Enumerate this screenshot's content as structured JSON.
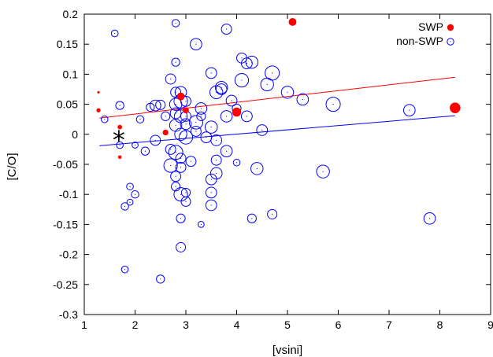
{
  "chart_data": {
    "type": "scatter",
    "xlabel": "[vsini]",
    "ylabel": "[C/O]",
    "xlim": [
      1,
      9
    ],
    "ylim": [
      -0.3,
      0.2
    ],
    "xticks": [
      "1",
      "2",
      "3",
      "4",
      "5",
      "6",
      "7",
      "8",
      "9"
    ],
    "yticks": [
      "-0.3",
      "-0.25",
      "-0.2",
      "-0.15",
      "-0.1",
      "-0.05",
      "0",
      "0.05",
      "0.1",
      "0.15",
      "0.2"
    ],
    "grid": false,
    "legend_position": "top-right",
    "annotation": {
      "text": "*",
      "x": 1.68,
      "y": -0.003
    },
    "series": [
      {
        "name": "SWP",
        "marker": "filled-circle",
        "color": "#ff0000",
        "points": [
          [
            1.28,
            0.07,
            0.6
          ],
          [
            1.28,
            0.04,
            1.0
          ],
          [
            1.7,
            0.012,
            1.1
          ],
          [
            1.7,
            -0.038,
            0.9
          ],
          [
            2.6,
            0.003,
            1.4
          ],
          [
            2.9,
            0.063,
            1.9
          ],
          [
            3.0,
            0.04,
            1.5
          ],
          [
            4.0,
            0.037,
            2.2
          ],
          [
            5.1,
            0.187,
            1.9
          ],
          [
            8.3,
            0.044,
            2.6
          ]
        ]
      },
      {
        "name": "non-SWP",
        "marker": "open-circle",
        "color": "#0000ff",
        "points": [
          [
            1.6,
            0.168,
            1.0
          ],
          [
            1.7,
            0.048,
            1.2
          ],
          [
            1.4,
            0.025,
            1.0
          ],
          [
            1.7,
            -0.018,
            1.0
          ],
          [
            1.8,
            -0.12,
            1.1
          ],
          [
            1.9,
            -0.087,
            1.0
          ],
          [
            2.0,
            -0.1,
            1.1
          ],
          [
            1.9,
            -0.113,
            0.9
          ],
          [
            2.0,
            -0.018,
            0.9
          ],
          [
            2.1,
            0.025,
            1.1
          ],
          [
            1.8,
            -0.225,
            1.0
          ],
          [
            2.5,
            -0.241,
            1.2
          ],
          [
            2.3,
            0.045,
            1.2
          ],
          [
            2.4,
            0.048,
            1.6
          ],
          [
            2.5,
            0.049,
            1.4
          ],
          [
            2.2,
            -0.028,
            1.2
          ],
          [
            2.4,
            -0.01,
            1.5
          ],
          [
            2.7,
            0.092,
            1.5
          ],
          [
            2.6,
            0.03,
            1.3
          ],
          [
            2.7,
            -0.025,
            1.5
          ],
          [
            2.7,
            -0.052,
            2.0
          ],
          [
            2.8,
            0.185,
            1.1
          ],
          [
            2.8,
            0.12,
            1.2
          ],
          [
            2.8,
            0.07,
            1.5
          ],
          [
            2.8,
            0.05,
            1.8
          ],
          [
            2.8,
            0.035,
            1.6
          ],
          [
            2.8,
            0.015,
            1.8
          ],
          [
            2.8,
            -0.03,
            2.1
          ],
          [
            2.8,
            -0.07,
            1.5
          ],
          [
            2.8,
            -0.087,
            1.3
          ],
          [
            2.9,
            0.07,
            1.7
          ],
          [
            2.9,
            0.055,
            2.0
          ],
          [
            2.9,
            0.03,
            1.9
          ],
          [
            2.9,
            0.0,
            1.8
          ],
          [
            2.9,
            -0.04,
            1.5
          ],
          [
            2.9,
            -0.055,
            1.5
          ],
          [
            2.9,
            -0.1,
            2.0
          ],
          [
            2.9,
            -0.14,
            1.3
          ],
          [
            2.9,
            -0.188,
            1.4
          ],
          [
            3.0,
            0.055,
            1.5
          ],
          [
            3.0,
            0.017,
            1.6
          ],
          [
            3.0,
            -0.005,
            2.0
          ],
          [
            3.0,
            -0.097,
            1.3
          ],
          [
            3.0,
            -0.112,
            1.4
          ],
          [
            3.0,
            0.03,
            1.5
          ],
          [
            3.1,
            -0.045,
            1.5
          ],
          [
            3.2,
            0.02,
            2.0
          ],
          [
            3.2,
            0.15,
            1.7
          ],
          [
            3.2,
            0.005,
            1.5
          ],
          [
            3.3,
            0.043,
            1.7
          ],
          [
            3.3,
            0.03,
            1.3
          ],
          [
            3.3,
            -0.15,
            0.9
          ],
          [
            3.4,
            -0.005,
            1.6
          ],
          [
            3.5,
            0.102,
            1.6
          ],
          [
            3.5,
            0.012,
            1.8
          ],
          [
            3.5,
            -0.075,
            1.6
          ],
          [
            3.5,
            -0.097,
            1.6
          ],
          [
            3.5,
            -0.118,
            1.6
          ],
          [
            3.6,
            0.07,
            1.9
          ],
          [
            3.6,
            -0.01,
            1.6
          ],
          [
            3.6,
            -0.043,
            1.5
          ],
          [
            3.6,
            -0.065,
            1.7
          ],
          [
            3.7,
            0.078,
            1.8
          ],
          [
            3.7,
            0.075,
            1.6
          ],
          [
            3.8,
            0.175,
            1.5
          ],
          [
            3.8,
            0.03,
            1.7
          ],
          [
            3.8,
            -0.028,
            1.7
          ],
          [
            3.9,
            0.056,
            1.6
          ],
          [
            4.0,
            0.043,
            1.3
          ],
          [
            4.0,
            -0.047,
            1.0
          ],
          [
            4.1,
            0.127,
            1.5
          ],
          [
            4.1,
            0.09,
            2.0
          ],
          [
            4.2,
            0.118,
            1.6
          ],
          [
            4.3,
            0.12,
            1.8
          ],
          [
            4.2,
            0.03,
            1.6
          ],
          [
            4.3,
            -0.14,
            1.3
          ],
          [
            4.4,
            -0.057,
            1.8
          ],
          [
            4.5,
            0.007,
            1.6
          ],
          [
            4.6,
            0.083,
            1.9
          ],
          [
            4.7,
            0.102,
            2.1
          ],
          [
            4.7,
            -0.133,
            1.4
          ],
          [
            5.0,
            0.07,
            1.8
          ],
          [
            5.3,
            0.058,
            1.7
          ],
          [
            5.7,
            -0.062,
            1.9
          ],
          [
            5.9,
            0.05,
            2.1
          ],
          [
            7.4,
            0.04,
            1.7
          ],
          [
            7.8,
            -0.14,
            1.7
          ]
        ]
      }
    ],
    "fits": [
      {
        "series": "SWP",
        "color": "#ff0000",
        "x": [
          1.3,
          8.3
        ],
        "y": [
          0.027,
          0.095
        ]
      },
      {
        "series": "non-SWP",
        "color": "#0000ff",
        "x": [
          1.3,
          8.3
        ],
        "y": [
          -0.019,
          0.031
        ]
      }
    ]
  }
}
